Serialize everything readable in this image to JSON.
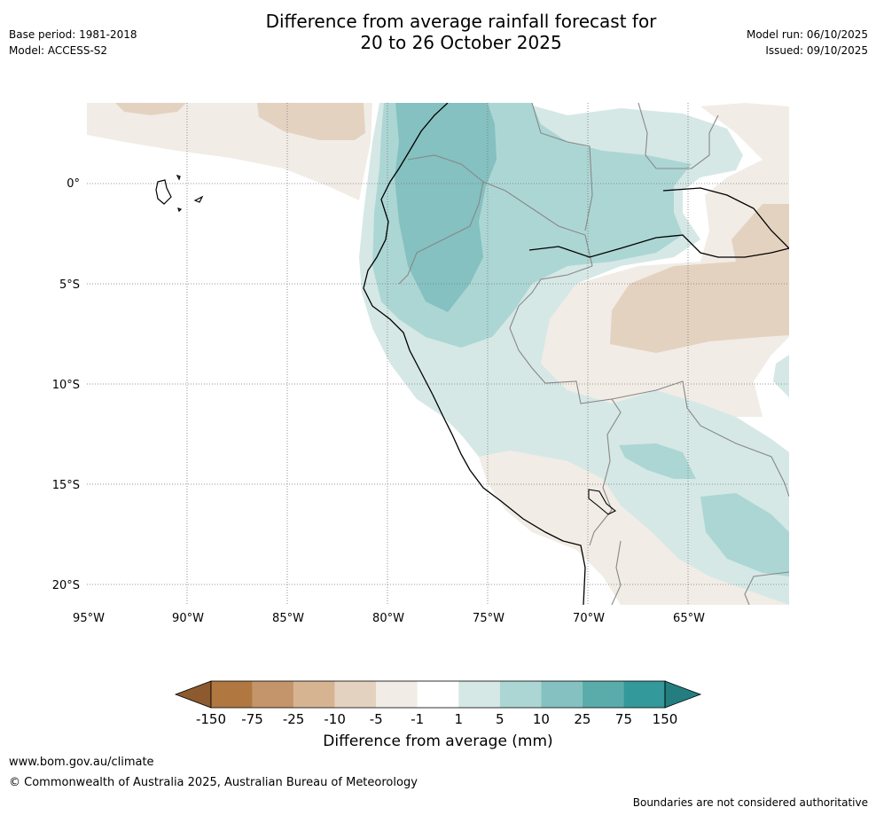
{
  "header": {
    "title_line1": "Difference from average rainfall forecast for",
    "title_line2": "20 to 26 October 2025",
    "base_period": "Base period: 1981-2018",
    "model": "Model: ACCESS-S2",
    "model_run": "Model run: 06/10/2025",
    "issued": "Issued: 09/10/2025"
  },
  "map": {
    "lon_labels": [
      "95°W",
      "90°W",
      "85°W",
      "80°W",
      "75°W",
      "70°W",
      "65°W"
    ],
    "lat_labels": [
      "0°",
      "5°S",
      "10°S",
      "15°S",
      "20°S"
    ]
  },
  "colorbar": {
    "ticks": [
      "-150",
      "-75",
      "-25",
      "-10",
      "-5",
      "-1",
      "1",
      "5",
      "10",
      "25",
      "75",
      "150"
    ],
    "colors": [
      "#8c5a2e",
      "#b07840",
      "#c4956a",
      "#d6b492",
      "#e4d2c0",
      "#f1ece6",
      "#ffffff",
      "#d5e8e6",
      "#acd6d4",
      "#84c1c0",
      "#5aacab",
      "#34999a",
      "#247e7f"
    ],
    "label": "Difference from average (mm)"
  },
  "footer": {
    "url": "www.bom.gov.au/climate",
    "copyright": "© Commonwealth of Australia 2025, Australian Bureau of Meteorology",
    "disclaimer": "Boundaries are not considered authoritative"
  }
}
